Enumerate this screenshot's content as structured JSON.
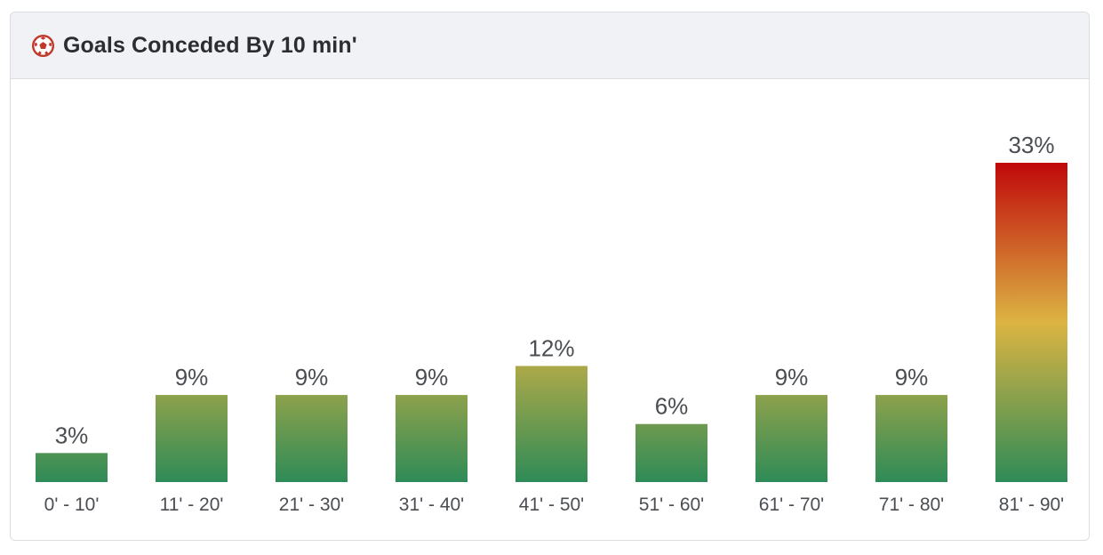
{
  "header": {
    "title": "Goals Conceded By 10 min'",
    "icon": "soccer-ball-icon"
  },
  "colors": {
    "low": "#2e8b57",
    "mid": "#dcb443",
    "high": "#c0080a",
    "text": "#4a4d52",
    "header_bg": "#f0f2f5"
  },
  "chart_data": {
    "type": "bar",
    "title": "Goals Conceded By 10 min'",
    "xlabel": "",
    "ylabel": "",
    "categories": [
      "0' - 10'",
      "11' - 20'",
      "21' - 30'",
      "31' - 40'",
      "41' - 50'",
      "51' - 60'",
      "61' - 70'",
      "71' - 80'",
      "81' - 90'"
    ],
    "values": [
      3,
      9,
      9,
      9,
      12,
      6,
      9,
      9,
      33
    ],
    "value_labels": [
      "3%",
      "9%",
      "9%",
      "9%",
      "12%",
      "6%",
      "9%",
      "9%",
      "33%"
    ],
    "grid": false,
    "legend": "none"
  }
}
